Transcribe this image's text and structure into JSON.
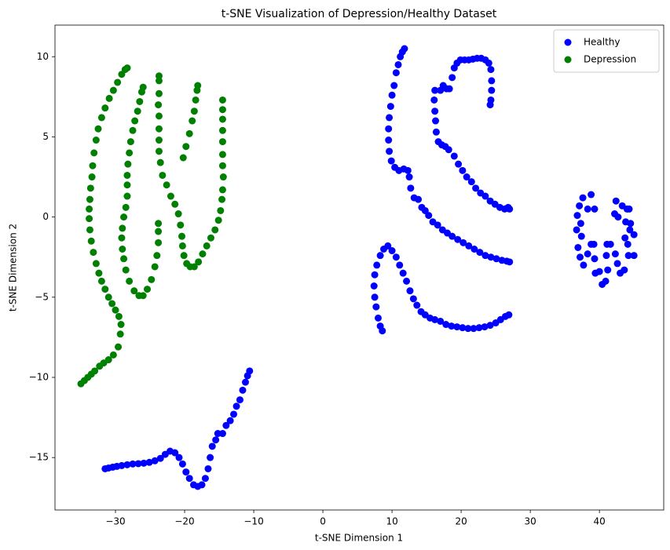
{
  "chart_data": {
    "type": "scatter",
    "title": "t-SNE Visualization of Depression/Healthy Dataset",
    "x_label": "t-SNE Dimension 1",
    "y_label": "t-SNE Dimension 2",
    "xlim": [
      -38.75,
      49.3
    ],
    "ylim": [
      -18.27,
      11.97
    ],
    "xticks": [
      {
        "value": -30,
        "label": "−30"
      },
      {
        "value": -20,
        "label": "−20"
      },
      {
        "value": -10,
        "label": "−10"
      },
      0,
      10,
      20,
      30,
      40
    ],
    "yticks": [
      {
        "value": -15,
        "label": "−15"
      },
      {
        "value": -10,
        "label": "−10"
      },
      {
        "value": -5,
        "label": "−5"
      },
      0,
      5,
      10
    ],
    "legend": "upper right",
    "series": [
      {
        "name": "Healthy",
        "color": "#0000ff",
        "x": [
          -31.5,
          -31,
          -30.4,
          -29.8,
          -29.1,
          -28.3,
          -27.5,
          -26.7,
          -25.9,
          -25.1,
          -24.3,
          -23.5,
          -22.8,
          -22.1,
          -21.4,
          -20.8,
          -20.3,
          -19.8,
          -19.3,
          -18.7,
          -18.1,
          -17.5,
          -17,
          -16.6,
          -16.3,
          -16,
          -15.5,
          -15.2,
          -14.5,
          -14,
          -13.4,
          -12.9,
          -12.5,
          -12,
          -11.6,
          -11.2,
          -10.9,
          -10.6,
          11.8,
          11.5,
          11.2,
          10.9,
          10.6,
          10.3,
          10,
          9.8,
          9.6,
          9.5,
          9.5,
          9.6,
          9.9,
          10.4,
          11,
          11.7,
          12.3,
          12.5,
          12.7,
          13.2,
          13.8,
          14.3,
          14.8,
          15.3,
          15.9,
          16.6,
          17.3,
          18,
          18.7,
          19.5,
          20.3,
          21.1,
          21.9,
          22.7,
          23.5,
          24.3,
          25.1,
          25.9,
          26.6,
          27,
          16.2,
          16.1,
          16.2,
          16.3,
          16.4,
          16.7,
          17.2,
          17.7,
          18.2,
          19,
          19.6,
          20.2,
          20.8,
          21.5,
          22.1,
          22.8,
          23.5,
          24.2,
          24.9,
          25.6,
          26.3,
          26.8,
          27,
          17,
          17.4,
          17.9,
          18.3,
          18.7,
          19,
          19.4,
          19.9,
          20.5,
          21.1,
          21.7,
          22.3,
          22.9,
          23.5,
          24,
          24.3,
          24.4,
          24.4,
          24.3,
          24.2,
          8.6,
          8.3,
          8,
          7.7,
          7.5,
          7.4,
          7.5,
          7.8,
          8.3,
          8.8,
          9.4,
          10,
          10.6,
          11.1,
          11.6,
          12.1,
          12.6,
          13.1,
          13.6,
          14.2,
          14.8,
          15.5,
          16.2,
          17,
          17.8,
          18.6,
          19.4,
          20.2,
          21,
          21.8,
          22.6,
          23.4,
          24.2,
          25,
          25.7,
          26.4,
          26.9,
          36.8,
          37.1,
          37.6,
          38.3,
          38.8,
          39.3,
          36.7,
          37.3,
          37.4,
          36.9,
          37.2,
          37.7,
          38.3,
          38.8,
          39.2,
          39.3,
          39.4,
          40,
          40.4,
          40.9,
          41.2,
          41,
          41.1,
          41.6,
          42.3,
          42.6,
          43,
          43.6,
          44.2,
          44.1,
          43.7,
          44.4,
          45,
          45,
          44.5,
          43.8,
          42.7,
          42.2,
          42.4,
          43.3,
          44,
          44.3
        ],
        "values": [
          -15.7,
          -15.65,
          -15.6,
          -15.55,
          -15.5,
          -15.45,
          -15.4,
          -15.38,
          -15.35,
          -15.3,
          -15.2,
          -15.05,
          -14.8,
          -14.6,
          -14.7,
          -15,
          -15.4,
          -15.9,
          -16.3,
          -16.7,
          -16.8,
          -16.7,
          -16.3,
          -15.7,
          -15,
          -14.3,
          -13.9,
          -13.5,
          -13.5,
          -13,
          -12.7,
          -12.3,
          -11.8,
          -11.4,
          -10.8,
          -10.3,
          -9.9,
          -9.6,
          10.5,
          10.3,
          10,
          9.5,
          9,
          8.2,
          7.6,
          6.9,
          6.2,
          5.5,
          4.8,
          4.1,
          3.5,
          3.1,
          2.9,
          3,
          2.9,
          2.5,
          1.8,
          1.2,
          1.1,
          0.6,
          0.4,
          0.1,
          -0.3,
          -0.5,
          -0.8,
          -1,
          -1.2,
          -1.4,
          -1.6,
          -1.8,
          -2,
          -2.2,
          -2.4,
          -2.5,
          -2.6,
          -2.7,
          -2.75,
          -2.8,
          7.9,
          7.3,
          6.6,
          6,
          5.3,
          4.7,
          4.5,
          4.4,
          4.2,
          3.8,
          3.3,
          2.9,
          2.5,
          2.2,
          1.8,
          1.5,
          1.3,
          1,
          0.8,
          0.6,
          0.5,
          0.6,
          0.5,
          7.9,
          8.2,
          8,
          8,
          8.7,
          9.3,
          9.6,
          9.8,
          9.8,
          9.8,
          9.85,
          9.9,
          9.9,
          9.8,
          9.6,
          9.2,
          8.5,
          7.9,
          7.3,
          7,
          -7.1,
          -6.8,
          -6.3,
          -5.6,
          -5,
          -4.3,
          -3.6,
          -3,
          -2.4,
          -2,
          -1.8,
          -2.1,
          -2.5,
          -3,
          -3.5,
          -4,
          -4.6,
          -5.1,
          -5.5,
          -5.9,
          -6.1,
          -6.3,
          -6.4,
          -6.5,
          -6.7,
          -6.8,
          -6.85,
          -6.9,
          -6.95,
          -6.95,
          -6.9,
          -6.85,
          -6.75,
          -6.6,
          -6.4,
          -6.2,
          -6.1,
          0.1,
          0.7,
          1.2,
          0.5,
          1.4,
          0.5,
          -0.8,
          -0.4,
          -1.2,
          -1.9,
          -2.5,
          -3,
          -2.3,
          -1.7,
          -1.7,
          -2.6,
          -3.5,
          -3.4,
          -4.2,
          -4,
          -3.3,
          -2.4,
          -1.7,
          -1.7,
          -2.3,
          -2.9,
          -3.5,
          -3.3,
          -2.4,
          -1.7,
          -1.3,
          -0.8,
          -1.1,
          -2.4,
          -0.4,
          -0.3,
          0,
          0.2,
          1,
          0.7,
          0.5,
          0.5
        ]
      },
      {
        "name": "Depression",
        "color": "#008000",
        "x": [
          -35,
          -34.5,
          -34,
          -33.5,
          -33,
          -32.3,
          -31.7,
          -31,
          -30.3,
          -29.6,
          -29.3,
          -29.2,
          -29.5,
          -30,
          -30.5,
          -31,
          -31.5,
          -32,
          -32.4,
          -32.8,
          -33.2,
          -33.5,
          -33.7,
          -33.8,
          -33.8,
          -33.7,
          -33.6,
          -33.4,
          -33.3,
          -33.1,
          -32.8,
          -32.5,
          -32,
          -31.5,
          -30.9,
          -30.3,
          -29.7,
          -29.1,
          -28.6,
          -28.3,
          -26,
          -26.2,
          -26.5,
          -26.8,
          -27.2,
          -27.5,
          -27.8,
          -28,
          -28.2,
          -28.3,
          -28.3,
          -28.3,
          -28.5,
          -28.8,
          -29,
          -29.1,
          -29,
          -28.8,
          -28.5,
          -28,
          -27.3,
          -26.6,
          -26,
          -25.4,
          -24.8,
          -24.3,
          -24,
          -23.8,
          -23.8,
          -23.8,
          -23.7,
          -23.7,
          -23.7,
          -23.8,
          -23.7,
          -23.7,
          -23.7,
          -23.7,
          -23.5,
          -23.2,
          -22.6,
          -22,
          -21.4,
          -20.9,
          -20.6,
          -20.4,
          -20.3,
          -20.1,
          -19.7,
          -19.2,
          -18.6,
          -18,
          -17.4,
          -16.8,
          -16.2,
          -15.6,
          -15.1,
          -14.8,
          -14.6,
          -14.5,
          -14.4,
          -14.5,
          -14.5,
          -14.5,
          -14.5,
          -14.5,
          -14.5,
          -14.5,
          -20.2,
          -19.8,
          -19.3,
          -18.9,
          -18.6,
          -18.4,
          -18.2,
          -18.1
        ],
        "values": [
          -10.4,
          -10.2,
          -10,
          -9.8,
          -9.6,
          -9.3,
          -9.1,
          -8.9,
          -8.6,
          -8.1,
          -7.3,
          -6.7,
          -6.2,
          -5.8,
          -5.4,
          -5,
          -4.5,
          -4,
          -3.5,
          -2.9,
          -2.2,
          -1.5,
          -0.8,
          -0.1,
          0.5,
          1.1,
          1.8,
          2.5,
          3.2,
          4,
          4.8,
          5.5,
          6.2,
          6.8,
          7.4,
          7.9,
          8.4,
          8.9,
          9.2,
          9.3,
          8.1,
          7.8,
          7.2,
          6.6,
          6,
          5.4,
          4.7,
          4,
          3.3,
          2.6,
          2,
          1.3,
          0.6,
          0,
          -0.7,
          -1.3,
          -2,
          -2.6,
          -3.3,
          -4,
          -4.6,
          -4.9,
          -4.9,
          -4.5,
          -3.9,
          -3.1,
          -2.4,
          -1.6,
          -0.9,
          -0.4,
          8.8,
          8.5,
          7.7,
          7,
          6.3,
          5.5,
          4.8,
          4.1,
          3.4,
          2.6,
          2,
          1.3,
          0.8,
          0.2,
          -0.5,
          -1.2,
          -1.8,
          -2.4,
          -2.9,
          -3.1,
          -3.1,
          -2.8,
          -2.3,
          -1.8,
          -1.3,
          -0.8,
          -0.2,
          0.4,
          1.1,
          1.7,
          2.5,
          3.2,
          3.9,
          4.7,
          5.4,
          6.1,
          6.7,
          7.3,
          3.7,
          4.4,
          5.2,
          6,
          6.6,
          7.3,
          7.9,
          8.2
        ]
      }
    ]
  }
}
